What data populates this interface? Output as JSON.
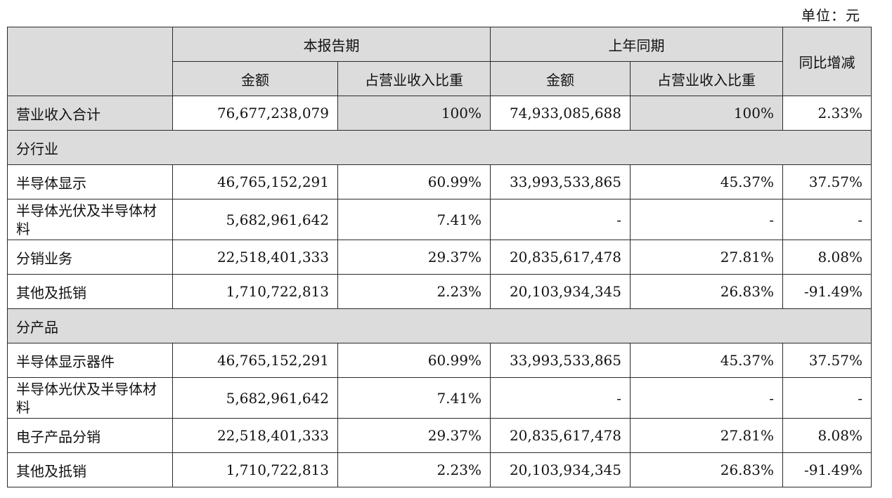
{
  "unit_label": "单位：元",
  "header": {
    "current_period": "本报告期",
    "prior_period": "上年同期",
    "yoy": "同比增减",
    "amount": "金额",
    "share": "占营业收入比重"
  },
  "total_row": {
    "label": "营业收入合计",
    "cur_amount": "76,677,238,079",
    "cur_share": "100%",
    "prev_amount": "74,933,085,688",
    "prev_share": "100%",
    "yoy": "2.33%"
  },
  "section_industry": "分行业",
  "industry_rows": [
    {
      "label": "半导体显示",
      "cur_amount": "46,765,152,291",
      "cur_share": "60.99%",
      "prev_amount": "33,993,533,865",
      "prev_share": "45.37%",
      "yoy": "37.57%"
    },
    {
      "label": "半导体光伏及半导体材料",
      "cur_amount": "5,682,961,642",
      "cur_share": "7.41%",
      "prev_amount": "-",
      "prev_share": "-",
      "yoy": "-"
    },
    {
      "label": "分销业务",
      "cur_amount": "22,518,401,333",
      "cur_share": "29.37%",
      "prev_amount": "20,835,617,478",
      "prev_share": "27.81%",
      "yoy": "8.08%"
    },
    {
      "label": "其他及抵销",
      "cur_amount": "1,710,722,813",
      "cur_share": "2.23%",
      "prev_amount": "20,103,934,345",
      "prev_share": "26.83%",
      "yoy": "-91.49%"
    }
  ],
  "section_product": "分产品",
  "product_rows": [
    {
      "label": "半导体显示器件",
      "cur_amount": "46,765,152,291",
      "cur_share": "60.99%",
      "prev_amount": "33,993,533,865",
      "prev_share": "45.37%",
      "yoy": "37.57%"
    },
    {
      "label": "半导体光伏及半导体材料",
      "cur_amount": "5,682,961,642",
      "cur_share": "7.41%",
      "prev_amount": "-",
      "prev_share": "-",
      "yoy": "-"
    },
    {
      "label": "电子产品分销",
      "cur_amount": "22,518,401,333",
      "cur_share": "29.37%",
      "prev_amount": "20,835,617,478",
      "prev_share": "27.81%",
      "yoy": "8.08%"
    },
    {
      "label": "其他及抵销",
      "cur_amount": "1,710,722,813",
      "cur_share": "2.23%",
      "prev_amount": "20,103,934,345",
      "prev_share": "26.83%",
      "yoy": "-91.49%"
    }
  ]
}
